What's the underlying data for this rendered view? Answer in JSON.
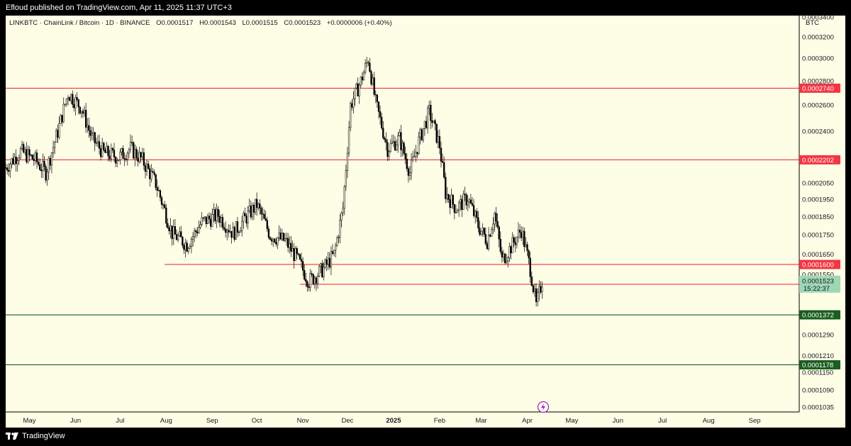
{
  "header": {
    "published": "Efloud published on TradingView.com, Apr 11, 2025 11:37 UTC+3"
  },
  "legend": {
    "symbol": "LINKBTC · ChainLink / Bitcoin · 1D · BINANCE",
    "open": "O0.0001517",
    "high": "H0.0001543",
    "low": "L0.0001515",
    "close": "C0.0001523",
    "change": "+0.0000006 (+0.40%)"
  },
  "currency_label": "BTC",
  "footer": {
    "brand": "TradingView"
  },
  "colors": {
    "background": "#fefde5",
    "candle": "#000000",
    "resistance": "#f23645",
    "support": "#1b5e20",
    "last_price": "#9ed7b5"
  },
  "chart_data": {
    "type": "candlestick",
    "symbol": "LINKBTC",
    "exchange": "BINANCE",
    "interval": "1D",
    "scale": "log",
    "ylim": [
      0.000102,
      0.000342
    ],
    "y_ticks": [
      "0.0003400",
      "0.0003200",
      "0.0003000",
      "0.0002800",
      "0.0002600",
      "0.0002400",
      "0.0002050",
      "0.0001950",
      "0.0001850",
      "0.0001750",
      "0.0001650",
      "0.0001550",
      "0.0001290",
      "0.0001210",
      "0.0001150",
      "0.0001090",
      "0.0001035"
    ],
    "x_ticks": [
      "May",
      "Jun",
      "Jul",
      "Aug",
      "Sep",
      "Oct",
      "Nov",
      "Dec",
      "2025",
      "Feb",
      "Mar",
      "Apr",
      "May",
      "Jun",
      "Jul",
      "Aug",
      "Sep"
    ],
    "x_range": [
      "2024-04-15",
      "2025-10-01"
    ],
    "horizontal_levels": [
      {
        "label": "0.0002740",
        "price": 0.000274,
        "kind": "resistance",
        "from": "2024-04-15"
      },
      {
        "label": "0.0002202",
        "price": 0.0002202,
        "kind": "resistance",
        "from": "2024-04-15"
      },
      {
        "label": "0.0001600",
        "price": 0.00016,
        "kind": "resistance",
        "from": "2024-07-31"
      },
      {
        "label": "0.0001506",
        "price": 0.0001506,
        "kind": "resistance",
        "from": "2024-10-30"
      },
      {
        "label": "0.0001372",
        "price": 0.0001372,
        "kind": "support",
        "from": "2024-04-15"
      },
      {
        "label": "0.0001178",
        "price": 0.0001178,
        "kind": "support",
        "from": "2024-04-15"
      }
    ],
    "last_price": {
      "label": "0.0001523",
      "countdown": "15:22:37",
      "price": 0.0001523
    },
    "price_path": [
      [
        "2024-04-15",
        0.000215
      ],
      [
        "2024-04-25",
        0.000226
      ],
      [
        "2024-05-05",
        0.00022
      ],
      [
        "2024-05-12",
        0.000212
      ],
      [
        "2024-05-20",
        0.00024
      ],
      [
        "2024-05-27",
        0.00027
      ],
      [
        "2024-06-05",
        0.000258
      ],
      [
        "2024-06-12",
        0.000235
      ],
      [
        "2024-06-20",
        0.000225
      ],
      [
        "2024-06-30",
        0.000222
      ],
      [
        "2024-07-08",
        0.000228
      ],
      [
        "2024-07-16",
        0.00022
      ],
      [
        "2024-07-25",
        0.000205
      ],
      [
        "2024-08-05",
        0.000176
      ],
      [
        "2024-08-15",
        0.00017
      ],
      [
        "2024-08-25",
        0.000182
      ],
      [
        "2024-09-05",
        0.000186
      ],
      [
        "2024-09-15",
        0.000176
      ],
      [
        "2024-09-25",
        0.000186
      ],
      [
        "2024-10-01",
        0.000192
      ],
      [
        "2024-10-10",
        0.000175
      ],
      [
        "2024-10-20",
        0.000172
      ],
      [
        "2024-10-28",
        0.000163
      ],
      [
        "2024-11-05",
        0.000152
      ],
      [
        "2024-11-15",
        0.000158
      ],
      [
        "2024-11-22",
        0.000165
      ],
      [
        "2024-11-28",
        0.00019
      ],
      [
        "2024-12-03",
        0.00026
      ],
      [
        "2024-12-10",
        0.00028
      ],
      [
        "2024-12-15",
        0.0003
      ],
      [
        "2024-12-20",
        0.000262
      ],
      [
        "2024-12-28",
        0.000228
      ],
      [
        "2025-01-05",
        0.000235
      ],
      [
        "2025-01-12",
        0.000212
      ],
      [
        "2025-01-18",
        0.000233
      ],
      [
        "2025-01-25",
        0.000255
      ],
      [
        "2025-02-01",
        0.00023
      ],
      [
        "2025-02-05",
        0.000199
      ],
      [
        "2025-02-12",
        0.00019
      ],
      [
        "2025-02-20",
        0.000196
      ],
      [
        "2025-02-27",
        0.00018
      ],
      [
        "2025-03-05",
        0.000172
      ],
      [
        "2025-03-10",
        0.000187
      ],
      [
        "2025-03-15",
        0.000162
      ],
      [
        "2025-03-22",
        0.00017
      ],
      [
        "2025-03-28",
        0.000178
      ],
      [
        "2025-04-03",
        0.000158
      ],
      [
        "2025-04-07",
        0.000141
      ],
      [
        "2025-04-11",
        0.0001523
      ]
    ]
  }
}
